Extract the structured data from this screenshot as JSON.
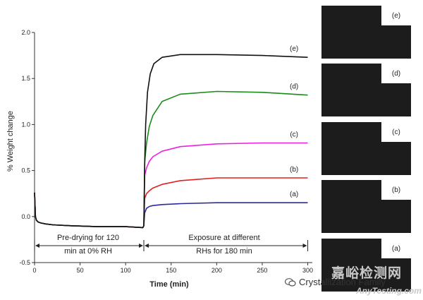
{
  "chart_data": {
    "type": "line",
    "xlabel": "Time (min)",
    "ylabel": "% Weight change",
    "xlim": [
      0,
      305
    ],
    "ylim": [
      -0.5,
      2.0
    ],
    "xticks": [
      "0",
      "50",
      "100",
      "150",
      "200",
      "250",
      "300"
    ],
    "yticks": [
      "-0.5",
      "0.0",
      "0.5",
      "1.0",
      "1.5",
      "2.0"
    ],
    "grid": false,
    "annotations": {
      "left": "Pre-drying for 120 min at 0% RH",
      "left_line1": "Pre-drying for 120",
      "left_line2": "min at 0% RH",
      "right_line1": "Exposure at different",
      "right_line2": "RHs for 180 min"
    },
    "series": [
      {
        "name": "(a)",
        "color": "#2b2b9e",
        "x": [
          0,
          1,
          2,
          4,
          7,
          12,
          20,
          40,
          70,
          100,
          119,
          120,
          121,
          123,
          126,
          130,
          140,
          160,
          200,
          250,
          300
        ],
        "y": [
          0.26,
          0.0,
          -0.04,
          -0.06,
          -0.07,
          -0.08,
          -0.09,
          -0.1,
          -0.11,
          -0.11,
          -0.12,
          -0.1,
          0.04,
          0.09,
          0.11,
          0.12,
          0.13,
          0.14,
          0.15,
          0.15,
          0.15
        ]
      },
      {
        "name": "(b)",
        "color": "#e02020",
        "x": [
          0,
          1,
          2,
          4,
          7,
          12,
          20,
          40,
          70,
          100,
          119,
          120,
          121,
          123,
          126,
          130,
          140,
          160,
          200,
          250,
          300
        ],
        "y": [
          0.26,
          0.0,
          -0.04,
          -0.06,
          -0.07,
          -0.08,
          -0.09,
          -0.1,
          -0.11,
          -0.11,
          -0.12,
          -0.1,
          0.2,
          0.25,
          0.28,
          0.31,
          0.35,
          0.39,
          0.42,
          0.42,
          0.42
        ]
      },
      {
        "name": "(c)",
        "color": "#ee22dd",
        "x": [
          0,
          1,
          2,
          4,
          7,
          12,
          20,
          40,
          70,
          100,
          119,
          120,
          121,
          123,
          126,
          130,
          140,
          160,
          200,
          250,
          300
        ],
        "y": [
          0.26,
          0.0,
          -0.04,
          -0.06,
          -0.07,
          -0.08,
          -0.09,
          -0.1,
          -0.11,
          -0.11,
          -0.12,
          -0.1,
          0.45,
          0.53,
          0.6,
          0.65,
          0.71,
          0.76,
          0.79,
          0.8,
          0.8
        ]
      },
      {
        "name": "(d)",
        "color": "#1a8c1a",
        "x": [
          0,
          1,
          2,
          4,
          7,
          12,
          20,
          40,
          70,
          100,
          119,
          120,
          121,
          123,
          126,
          130,
          140,
          160,
          200,
          250,
          300
        ],
        "y": [
          0.26,
          0.0,
          -0.04,
          -0.06,
          -0.07,
          -0.08,
          -0.09,
          -0.1,
          -0.11,
          -0.11,
          -0.12,
          -0.1,
          0.6,
          0.8,
          0.98,
          1.1,
          1.25,
          1.33,
          1.36,
          1.35,
          1.32
        ]
      },
      {
        "name": "(e)",
        "color": "#111111",
        "x": [
          0,
          1,
          2,
          4,
          7,
          12,
          20,
          40,
          70,
          100,
          119,
          120,
          121,
          122,
          124,
          127,
          131,
          140,
          160,
          200,
          250,
          300
        ],
        "y": [
          0.26,
          0.0,
          -0.04,
          -0.06,
          -0.07,
          -0.08,
          -0.09,
          -0.1,
          -0.11,
          -0.11,
          -0.12,
          -0.1,
          0.6,
          1.0,
          1.35,
          1.55,
          1.66,
          1.73,
          1.76,
          1.76,
          1.75,
          1.73
        ]
      }
    ]
  },
  "thumbnails": [
    {
      "label": "(e)"
    },
    {
      "label": "(d)"
    },
    {
      "label": "(c)"
    },
    {
      "label": "(b)"
    },
    {
      "label": "(a)"
    }
  ],
  "watermark": {
    "logo_cn": "嘉峪检测网",
    "main": "Crystallization Family",
    "url": "AnyTesting.com"
  }
}
